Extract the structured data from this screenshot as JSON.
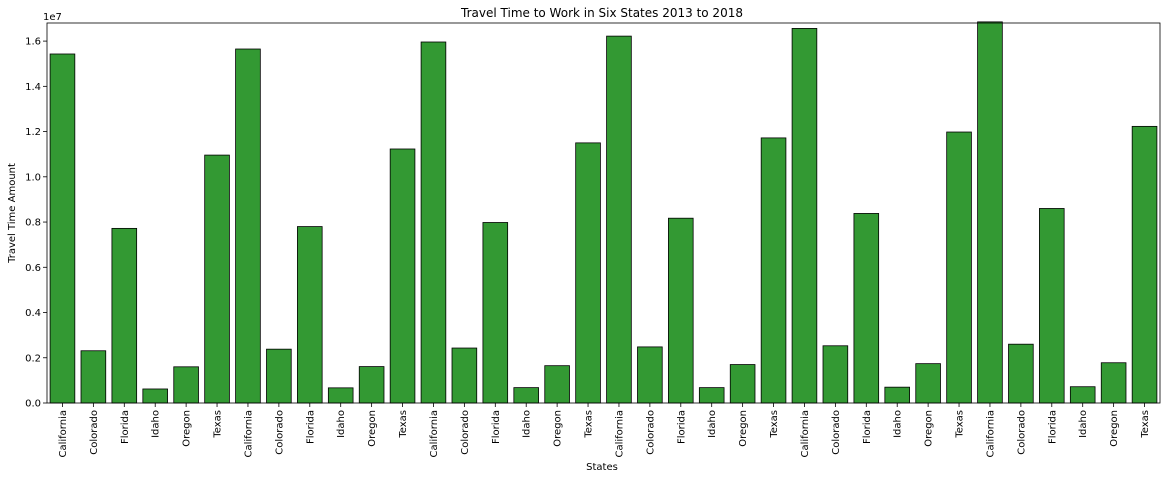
{
  "chart_data": {
    "type": "bar",
    "title": "Travel Time to Work in Six States 2013 to 2018",
    "xlabel": "States",
    "ylabel": "Travel Time Amount",
    "y_multiplier_label": "1e7",
    "ylim": [
      0,
      16800000
    ],
    "yticks": [
      0,
      2000000,
      4000000,
      6000000,
      8000000,
      10000000,
      12000000,
      14000000,
      16000000
    ],
    "ytick_labels": [
      "0.0",
      "0.2",
      "0.4",
      "0.6",
      "0.8",
      "1.0",
      "1.2",
      "1.4",
      "1.6"
    ],
    "bar_color": "#339933",
    "edge_color": "#000000",
    "grid": false,
    "categories": [
      "California",
      "Colorado",
      "Florida",
      "Idaho",
      "Oregon",
      "Texas",
      "California",
      "Colorado",
      "Florida",
      "Idaho",
      "Oregon",
      "Texas",
      "California",
      "Colorado",
      "Florida",
      "Idaho",
      "Oregon",
      "Texas",
      "California",
      "Colorado",
      "Florida",
      "Idaho",
      "Oregon",
      "Texas",
      "California",
      "Colorado",
      "Florida",
      "Idaho",
      "Oregon",
      "Texas",
      "California",
      "Colorado",
      "Florida",
      "Idaho",
      "Oregon",
      "Texas"
    ],
    "values": [
      15430000,
      2310000,
      7720000,
      620000,
      1600000,
      10960000,
      15650000,
      2380000,
      7800000,
      670000,
      1610000,
      11230000,
      15960000,
      2430000,
      7980000,
      680000,
      1650000,
      11500000,
      16220000,
      2480000,
      8170000,
      680000,
      1700000,
      11720000,
      16560000,
      2530000,
      8380000,
      700000,
      1740000,
      11980000,
      16850000,
      2600000,
      8600000,
      720000,
      1780000,
      12230000
    ]
  }
}
